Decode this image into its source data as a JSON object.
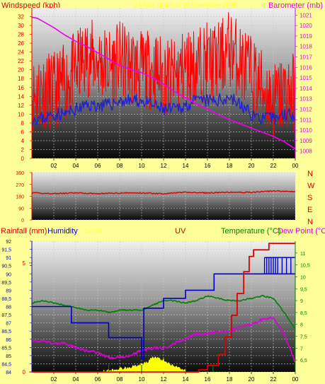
{
  "colors": {
    "background": "#ffff99",
    "windspeed": "#ff0000",
    "gust_avg": "#2222cc",
    "barometer": "#ee00ee",
    "direction": "#dd0000",
    "rainfall": "#dd0000",
    "humidity": "#0000cc",
    "solar": "#ffff00",
    "uv": "#cc0000",
    "temperature": "#008000",
    "dewpoint": "#dd00dd",
    "title": "#ffff55"
  },
  "header": {
    "windspeed_label": "Windspeed (kph)",
    "title": "24 hour graph to 10 November 2008",
    "barometer_label": "Barometer (mb)"
  },
  "labels": {
    "rainfall": "Rainfall (mm)",
    "humidity": "Humidity",
    "solar": "Solar",
    "uv": "UV",
    "temperature": "Temperature (°C)",
    "dewpoint": "Dew Point (°C)"
  },
  "compass": [
    "N",
    "W",
    "S",
    "E",
    "N"
  ],
  "chart_data": [
    {
      "type": "line",
      "name": "wind-barometer",
      "x_ticks": [
        "02",
        "04",
        "06",
        "08",
        "10",
        "12",
        "14",
        "16",
        "18",
        "20",
        "22",
        "00"
      ],
      "x_range": [
        0,
        24
      ],
      "left_axis": {
        "label": "Windspeed (kph)",
        "ylim": [
          0,
          34
        ],
        "ticks": [
          "0",
          "2",
          "4",
          "6",
          "8",
          "10",
          "12",
          "14",
          "16",
          "18",
          "20",
          "22",
          "24",
          "26",
          "28",
          "30",
          "32"
        ]
      },
      "right_axis": {
        "label": "Barometer (mb)",
        "ylim": [
          1007.3,
          1021.7
        ],
        "ticks": [
          "1008",
          "1009",
          "1010",
          "1011",
          "1012",
          "1013",
          "1014",
          "1015",
          "1016",
          "1017",
          "1018",
          "1019",
          "1020",
          "1021"
        ]
      },
      "series": [
        {
          "name": "Windspeed (kph)",
          "axis": "left",
          "kind": "spiky",
          "x": [
            0,
            1,
            2,
            3,
            4,
            5,
            6,
            7,
            8,
            9,
            10,
            11,
            12,
            13,
            14,
            15,
            16,
            17,
            18,
            19,
            20,
            21,
            22,
            23,
            24
          ],
          "y": [
            13,
            15,
            14,
            16,
            19,
            22,
            21,
            20,
            21,
            20,
            19,
            19,
            18,
            17,
            20,
            20,
            21,
            21,
            24,
            21,
            18,
            15,
            12,
            14,
            14
          ]
        },
        {
          "name": "Average windspeed",
          "axis": "left",
          "kind": "noisy",
          "x": [
            0,
            1,
            2,
            3,
            4,
            5,
            6,
            7,
            8,
            9,
            10,
            11,
            12,
            13,
            14,
            15,
            16,
            17,
            18,
            19,
            20,
            21,
            22,
            23,
            24
          ],
          "y": [
            9,
            9,
            10,
            10,
            11,
            12,
            12,
            12,
            13,
            13,
            13,
            12,
            11,
            11,
            12,
            13,
            13,
            13,
            14,
            12,
            10,
            9,
            9,
            10,
            10
          ]
        },
        {
          "name": "Barometer (mb)",
          "axis": "right",
          "kind": "line",
          "x": [
            0,
            0.5,
            1,
            2,
            3,
            4,
            5,
            6,
            7,
            8,
            9,
            10,
            11,
            12,
            13,
            14,
            15,
            16,
            17,
            18,
            19,
            20,
            21,
            22,
            23,
            24
          ],
          "y": [
            1020.8,
            1020.7,
            1020.4,
            1019.8,
            1019.1,
            1018.5,
            1018.0,
            1017.4,
            1016.8,
            1016.2,
            1015.8,
            1015.5,
            1015.0,
            1014.4,
            1013.7,
            1013.1,
            1012.5,
            1012.0,
            1011.5,
            1011.0,
            1010.6,
            1010.2,
            1009.8,
            1009.4,
            1008.9,
            1008.2
          ]
        }
      ]
    },
    {
      "type": "line",
      "name": "wind-direction",
      "x_range": [
        0,
        24
      ],
      "ylim": [
        0,
        360
      ],
      "y_ticks": [
        "0",
        "90",
        "180",
        "270",
        "360"
      ],
      "series": [
        {
          "name": "Direction",
          "kind": "noisy",
          "x": [
            0,
            2,
            4,
            6,
            8,
            10,
            12,
            14,
            16,
            18,
            20,
            22,
            24
          ],
          "y": [
            205,
            200,
            205,
            200,
            205,
            205,
            200,
            210,
            205,
            210,
            210,
            220,
            215
          ]
        }
      ]
    },
    {
      "type": "line",
      "name": "rain-humidity-temp",
      "x_ticks": [
        "02",
        "04",
        "06",
        "08",
        "10",
        "12",
        "14",
        "16",
        "18",
        "20",
        "22",
        "00"
      ],
      "x_range": [
        0,
        24
      ],
      "humidity_axis": {
        "ylim": [
          84,
          92
        ],
        "ticks": [
          "84",
          "84,5",
          "85",
          "85,5",
          "86",
          "86,5",
          "87",
          "87,5",
          "88",
          "88,5",
          "89",
          "89,5",
          "90",
          "90,5",
          "91",
          "91,5",
          "92"
        ]
      },
      "rain_axis": {
        "ylim": [
          0,
          6
        ],
        "ticks": [
          "0",
          "5"
        ]
      },
      "temp_axis": {
        "ylim": [
          6,
          11.5
        ],
        "ticks": [
          "6,5",
          "7",
          "7,5",
          "8",
          "8,5",
          "9",
          "9,5",
          "10",
          "10,5",
          "11"
        ]
      },
      "series": [
        {
          "name": "Rainfall (mm)",
          "axis": "rain",
          "kind": "step",
          "x": [
            0,
            14,
            15.2,
            16,
            17,
            17.6,
            18.2,
            18.7,
            19.3,
            19.8,
            20.2,
            21,
            21.6,
            24
          ],
          "y": [
            0,
            0,
            0.1,
            0.3,
            0.8,
            1.6,
            2.6,
            3.6,
            4.6,
            5.3,
            5.6,
            5.6,
            5.9,
            5.9
          ]
        },
        {
          "name": "Humidity",
          "axis": "humidity",
          "kind": "step",
          "x": [
            0,
            3.6,
            3.6,
            7,
            7,
            10,
            10,
            10.2,
            10.2,
            12,
            12,
            14,
            14,
            16.6,
            16.6,
            24
          ],
          "y": [
            88,
            88,
            87,
            87,
            86.1,
            86.1,
            84.8,
            84.8,
            87.9,
            87.9,
            88.5,
            88.5,
            89,
            89,
            90,
            90
          ]
        },
        {
          "name": "Humidity spikes",
          "axis": "humidity",
          "kind": "spikes",
          "x": [
            21.2,
            21.4,
            21.6,
            21.8,
            22,
            22.2,
            22.4,
            22.8,
            23.2,
            23.6
          ],
          "y": [
            91,
            91,
            91,
            91,
            91,
            91,
            91,
            91,
            91,
            91
          ]
        },
        {
          "name": "Temperature (°C)",
          "axis": "temp",
          "kind": "line",
          "x": [
            0,
            1,
            2,
            3,
            4,
            5,
            6,
            7,
            8,
            9,
            10,
            11,
            12,
            13,
            14,
            15,
            16,
            17,
            18,
            19,
            20,
            21,
            22,
            23,
            24
          ],
          "y": [
            8.9,
            9.0,
            8.9,
            8.8,
            8.7,
            8.6,
            8.6,
            8.5,
            8.6,
            8.6,
            8.6,
            8.8,
            9.0,
            9.0,
            8.9,
            9.0,
            9.2,
            9.1,
            9.0,
            9.0,
            9.1,
            9.2,
            9.1,
            8.5,
            7.8
          ]
        },
        {
          "name": "Dew Point (°C)",
          "axis": "temp",
          "kind": "noisy",
          "x": [
            0,
            1,
            2,
            3,
            4,
            5,
            6,
            7,
            8,
            9,
            10,
            11,
            12,
            13,
            14,
            15,
            16,
            17,
            18,
            19,
            20,
            21,
            22,
            23,
            24
          ],
          "y": [
            7.3,
            7.3,
            7.2,
            7.2,
            7.0,
            6.9,
            6.8,
            6.6,
            6.6,
            6.7,
            6.9,
            7.0,
            7.0,
            7.2,
            7.4,
            7.6,
            7.6,
            7.7,
            7.7,
            7.9,
            8.0,
            8.2,
            8.3,
            7.6,
            6.4
          ]
        },
        {
          "name": "Solar",
          "axis": "solar",
          "kind": "area",
          "x": [
            6.5,
            7.5,
            8.5,
            9.5,
            10.5,
            11,
            11.5,
            12,
            12.5,
            13.5,
            14
          ],
          "y": [
            0.02,
            0.08,
            0.15,
            0.22,
            0.35,
            0.55,
            0.5,
            0.45,
            0.3,
            0.15,
            0.02
          ]
        },
        {
          "name": "UV",
          "axis": "temp",
          "kind": "ticks",
          "x": [
            7,
            10,
            16.5
          ],
          "y": [
            6.3,
            6.3,
            6.3
          ]
        }
      ]
    }
  ]
}
